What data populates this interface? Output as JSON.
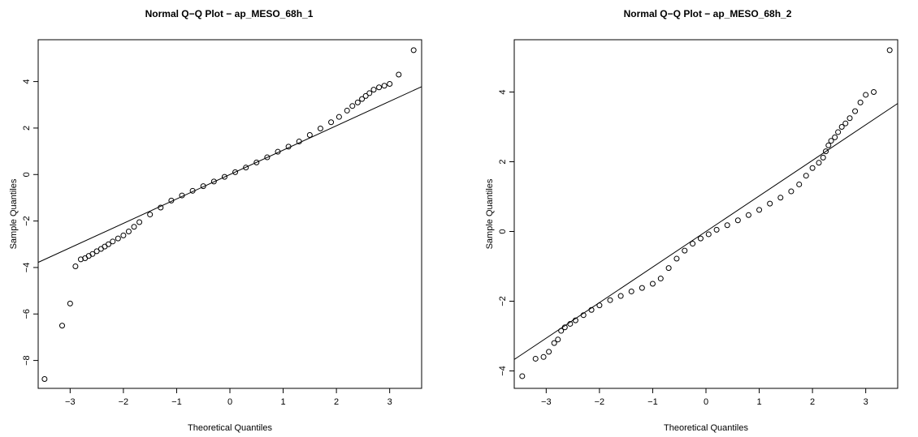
{
  "chart_data": [
    {
      "type": "scatter",
      "title": "Normal Q−Q Plot − ap_MESO_68h_1",
      "xlabel": "Theoretical Quantiles",
      "ylabel": "Sample Quantiles",
      "xlim": [
        -3.6,
        3.6
      ],
      "ylim": [
        -9.2,
        5.8
      ],
      "xticks": [
        -3,
        -2,
        -1,
        0,
        1,
        2,
        3
      ],
      "yticks": [
        -8,
        -6,
        -4,
        -2,
        0,
        2,
        4
      ],
      "xtick_labels": [
        "−3",
        "−2",
        "−1",
        "0",
        "1",
        "2",
        "3"
      ],
      "ytick_labels": [
        "−8",
        "−6",
        "−4",
        "−2",
        "0",
        "2",
        "4"
      ],
      "reference_line": {
        "intercept": 0.0,
        "slope": 1.05
      },
      "marker": "open-circle",
      "point_color": "#000000",
      "series": [
        {
          "values": [
            {
              "x": -3.48,
              "y": -8.8
            },
            {
              "x": -3.15,
              "y": -6.5
            },
            {
              "x": -3.0,
              "y": -5.55
            },
            {
              "x": -2.9,
              "y": -3.95
            },
            {
              "x": -2.8,
              "y": -3.65
            },
            {
              "x": -2.72,
              "y": -3.6
            },
            {
              "x": -2.65,
              "y": -3.5
            },
            {
              "x": -2.58,
              "y": -3.42
            },
            {
              "x": -2.5,
              "y": -3.3
            },
            {
              "x": -2.42,
              "y": -3.2
            },
            {
              "x": -2.35,
              "y": -3.1
            },
            {
              "x": -2.28,
              "y": -3.0
            },
            {
              "x": -2.2,
              "y": -2.88
            },
            {
              "x": -2.1,
              "y": -2.75
            },
            {
              "x": -2.0,
              "y": -2.62
            },
            {
              "x": -1.9,
              "y": -2.45
            },
            {
              "x": -1.8,
              "y": -2.25
            },
            {
              "x": -1.7,
              "y": -2.05
            },
            {
              "x": -1.5,
              "y": -1.72
            },
            {
              "x": -1.3,
              "y": -1.42
            },
            {
              "x": -1.1,
              "y": -1.12
            },
            {
              "x": -0.9,
              "y": -0.9
            },
            {
              "x": -0.7,
              "y": -0.7
            },
            {
              "x": -0.5,
              "y": -0.5
            },
            {
              "x": -0.3,
              "y": -0.3
            },
            {
              "x": -0.1,
              "y": -0.1
            },
            {
              "x": 0.1,
              "y": 0.1
            },
            {
              "x": 0.3,
              "y": 0.3
            },
            {
              "x": 0.5,
              "y": 0.52
            },
            {
              "x": 0.7,
              "y": 0.74
            },
            {
              "x": 0.9,
              "y": 0.98
            },
            {
              "x": 1.1,
              "y": 1.2
            },
            {
              "x": 1.3,
              "y": 1.42
            },
            {
              "x": 1.5,
              "y": 1.7
            },
            {
              "x": 1.7,
              "y": 1.98
            },
            {
              "x": 1.9,
              "y": 2.25
            },
            {
              "x": 2.05,
              "y": 2.48
            },
            {
              "x": 2.2,
              "y": 2.75
            },
            {
              "x": 2.3,
              "y": 2.95
            },
            {
              "x": 2.4,
              "y": 3.1
            },
            {
              "x": 2.48,
              "y": 3.25
            },
            {
              "x": 2.55,
              "y": 3.38
            },
            {
              "x": 2.62,
              "y": 3.5
            },
            {
              "x": 2.7,
              "y": 3.65
            },
            {
              "x": 2.8,
              "y": 3.75
            },
            {
              "x": 2.9,
              "y": 3.82
            },
            {
              "x": 3.0,
              "y": 3.9
            },
            {
              "x": 3.17,
              "y": 4.3
            },
            {
              "x": 3.45,
              "y": 5.35
            }
          ]
        }
      ]
    },
    {
      "type": "scatter",
      "title": "Normal Q−Q Plot − ap_MESO_68h_2",
      "xlabel": "Theoretical Quantiles",
      "ylabel": "Sample Quantiles",
      "xlim": [
        -3.6,
        3.6
      ],
      "ylim": [
        -4.5,
        5.5
      ],
      "xticks": [
        -3,
        -2,
        -1,
        0,
        1,
        2,
        3
      ],
      "yticks": [
        -4,
        -2,
        0,
        2,
        4
      ],
      "xtick_labels": [
        "−3",
        "−2",
        "−1",
        "0",
        "1",
        "2",
        "3"
      ],
      "ytick_labels": [
        "−4",
        "−2",
        "0",
        "2",
        "4"
      ],
      "reference_line": {
        "intercept": 0.0,
        "slope": 1.02
      },
      "marker": "open-circle",
      "point_color": "#000000",
      "series": [
        {
          "values": [
            {
              "x": -3.45,
              "y": -4.15
            },
            {
              "x": -3.2,
              "y": -3.65
            },
            {
              "x": -3.05,
              "y": -3.6
            },
            {
              "x": -2.95,
              "y": -3.45
            },
            {
              "x": -2.85,
              "y": -3.2
            },
            {
              "x": -2.78,
              "y": -3.1
            },
            {
              "x": -2.72,
              "y": -2.85
            },
            {
              "x": -2.65,
              "y": -2.75
            },
            {
              "x": -2.55,
              "y": -2.65
            },
            {
              "x": -2.45,
              "y": -2.55
            },
            {
              "x": -2.3,
              "y": -2.4
            },
            {
              "x": -2.15,
              "y": -2.25
            },
            {
              "x": -2.0,
              "y": -2.12
            },
            {
              "x": -1.8,
              "y": -1.97
            },
            {
              "x": -1.6,
              "y": -1.85
            },
            {
              "x": -1.4,
              "y": -1.72
            },
            {
              "x": -1.2,
              "y": -1.62
            },
            {
              "x": -1.0,
              "y": -1.5
            },
            {
              "x": -0.85,
              "y": -1.35
            },
            {
              "x": -0.7,
              "y": -1.05
            },
            {
              "x": -0.55,
              "y": -0.78
            },
            {
              "x": -0.4,
              "y": -0.55
            },
            {
              "x": -0.25,
              "y": -0.35
            },
            {
              "x": -0.1,
              "y": -0.2
            },
            {
              "x": 0.05,
              "y": -0.08
            },
            {
              "x": 0.2,
              "y": 0.05
            },
            {
              "x": 0.4,
              "y": 0.18
            },
            {
              "x": 0.6,
              "y": 0.32
            },
            {
              "x": 0.8,
              "y": 0.47
            },
            {
              "x": 1.0,
              "y": 0.62
            },
            {
              "x": 1.2,
              "y": 0.8
            },
            {
              "x": 1.4,
              "y": 0.97
            },
            {
              "x": 1.6,
              "y": 1.15
            },
            {
              "x": 1.75,
              "y": 1.35
            },
            {
              "x": 1.88,
              "y": 1.6
            },
            {
              "x": 2.0,
              "y": 1.82
            },
            {
              "x": 2.12,
              "y": 1.97
            },
            {
              "x": 2.2,
              "y": 2.12
            },
            {
              "x": 2.25,
              "y": 2.3
            },
            {
              "x": 2.3,
              "y": 2.47
            },
            {
              "x": 2.35,
              "y": 2.6
            },
            {
              "x": 2.42,
              "y": 2.7
            },
            {
              "x": 2.48,
              "y": 2.85
            },
            {
              "x": 2.55,
              "y": 3.0
            },
            {
              "x": 2.62,
              "y": 3.1
            },
            {
              "x": 2.7,
              "y": 3.25
            },
            {
              "x": 2.8,
              "y": 3.45
            },
            {
              "x": 2.9,
              "y": 3.7
            },
            {
              "x": 3.0,
              "y": 3.92
            },
            {
              "x": 3.15,
              "y": 4.0
            },
            {
              "x": 3.45,
              "y": 5.2
            }
          ]
        }
      ]
    }
  ]
}
